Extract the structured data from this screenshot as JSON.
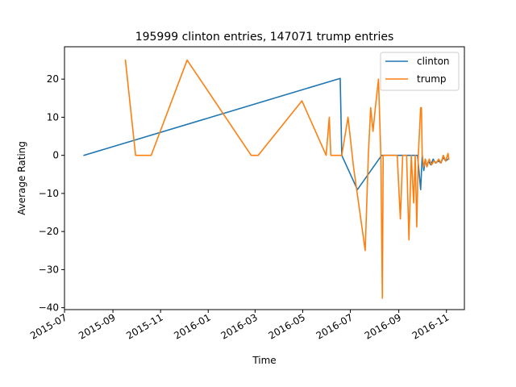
{
  "chart_data": {
    "type": "line",
    "title": "195999 clinton entries, 147071 trump entries",
    "xlabel": "Time",
    "ylabel": "Average Rating",
    "xlim": [
      "2015-07-01",
      "2016-11-24"
    ],
    "ylim": [
      -40.5,
      28.5
    ],
    "yticks": [
      -40,
      -30,
      -20,
      -10,
      0,
      10,
      20
    ],
    "xticks": [
      {
        "date": "2015-07-01",
        "label": "2015-07"
      },
      {
        "date": "2015-09-01",
        "label": "2015-09"
      },
      {
        "date": "2015-11-01",
        "label": "2015-11"
      },
      {
        "date": "2016-01-01",
        "label": "2016-01"
      },
      {
        "date": "2016-03-01",
        "label": "2016-03"
      },
      {
        "date": "2016-05-01",
        "label": "2016-05"
      },
      {
        "date": "2016-07-01",
        "label": "2016-07"
      },
      {
        "date": "2016-09-01",
        "label": "2016-09"
      },
      {
        "date": "2016-11-01",
        "label": "2016-11"
      }
    ],
    "grid": false,
    "legend_position": "top-right",
    "series": [
      {
        "name": "clinton",
        "color": "#1f77b4",
        "points": [
          [
            "2015-07-26",
            0
          ],
          [
            "2016-06-18",
            20.2
          ],
          [
            "2016-06-20",
            0
          ],
          [
            "2016-07-10",
            -9
          ],
          [
            "2016-08-10",
            0
          ],
          [
            "2016-09-25",
            0
          ],
          [
            "2016-09-29",
            -9
          ],
          [
            "2016-10-01",
            0
          ],
          [
            "2016-10-03",
            -4
          ],
          [
            "2016-10-05",
            -1
          ],
          [
            "2016-10-07",
            -3
          ],
          [
            "2016-10-09",
            -1.5
          ],
          [
            "2016-10-12",
            -2.5
          ],
          [
            "2016-10-15",
            -1
          ],
          [
            "2016-10-18",
            -2
          ],
          [
            "2016-10-22",
            -1.5
          ],
          [
            "2016-10-25",
            -2
          ],
          [
            "2016-10-28",
            -0.5
          ],
          [
            "2016-10-31",
            -1.5
          ],
          [
            "2016-11-03",
            -1
          ]
        ]
      },
      {
        "name": "trump",
        "color": "#ff7f0e",
        "points": [
          [
            "2015-09-17",
            25
          ],
          [
            "2015-09-30",
            0
          ],
          [
            "2015-10-20",
            0
          ],
          [
            "2015-12-05",
            25
          ],
          [
            "2016-02-25",
            0
          ],
          [
            "2016-03-05",
            0
          ],
          [
            "2016-04-30",
            14.3
          ],
          [
            "2016-05-31",
            0
          ],
          [
            "2016-06-04",
            10
          ],
          [
            "2016-06-06",
            0
          ],
          [
            "2016-06-20",
            0
          ],
          [
            "2016-06-28",
            10
          ],
          [
            "2016-07-05",
            -3
          ],
          [
            "2016-07-20",
            -25
          ],
          [
            "2016-07-24",
            0
          ],
          [
            "2016-07-27",
            12.5
          ],
          [
            "2016-07-30",
            6.3
          ],
          [
            "2016-08-02",
            12.5
          ],
          [
            "2016-08-06",
            20
          ],
          [
            "2016-08-09",
            0
          ],
          [
            "2016-08-11",
            -37.5
          ],
          [
            "2016-08-12",
            0
          ],
          [
            "2016-08-28",
            0
          ],
          [
            "2016-08-30",
            0
          ],
          [
            "2016-09-03",
            -16.7
          ],
          [
            "2016-09-06",
            0
          ],
          [
            "2016-09-11",
            0
          ],
          [
            "2016-09-14",
            -22.2
          ],
          [
            "2016-09-17",
            0
          ],
          [
            "2016-09-20",
            -12.5
          ],
          [
            "2016-09-22",
            0
          ],
          [
            "2016-09-24",
            -18.8
          ],
          [
            "2016-09-26",
            0
          ],
          [
            "2016-09-29",
            12.5
          ],
          [
            "2016-09-30",
            12.5
          ],
          [
            "2016-10-01",
            0
          ],
          [
            "2016-10-03",
            -3
          ],
          [
            "2016-10-05",
            -1
          ],
          [
            "2016-10-07",
            -3
          ],
          [
            "2016-10-10",
            -1
          ],
          [
            "2016-10-13",
            -2.5
          ],
          [
            "2016-10-16",
            -1.5
          ],
          [
            "2016-10-19",
            -2
          ],
          [
            "2016-10-22",
            -1
          ],
          [
            "2016-10-25",
            -2
          ],
          [
            "2016-10-28",
            0
          ],
          [
            "2016-10-31",
            -1.5
          ],
          [
            "2016-11-03",
            0.5
          ],
          [
            "2016-11-04",
            -1
          ]
        ]
      }
    ]
  }
}
